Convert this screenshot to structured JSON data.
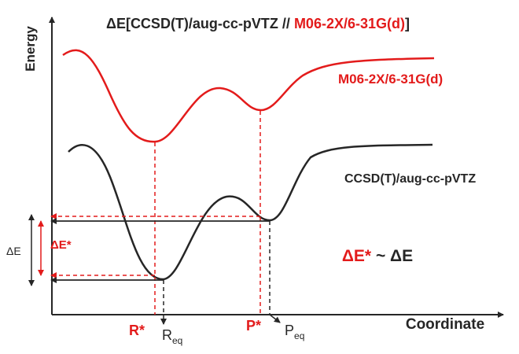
{
  "title": {
    "prefix": "ΔE[CCSD(T)/aug-cc-pVTZ // ",
    "highlight": "M06-2X/6-31G(d)",
    "suffix": "]"
  },
  "axes": {
    "y_label": "Energy",
    "x_label": "Coordinate"
  },
  "curves": {
    "red_label": "M06-2X/6-31G(d)",
    "black_label": "CCSD(T)/aug-cc-pVTZ"
  },
  "points": {
    "r_star": "R*",
    "r_eq_main": "R",
    "r_eq_sub": "eq",
    "p_star": "P*",
    "p_eq_main": "P",
    "p_eq_sub": "eq"
  },
  "deltas": {
    "delta_e": "ΔE",
    "delta_e_star": "ΔE*",
    "relation_left": "ΔE*",
    "relation_right": " ~ ΔE"
  },
  "colors": {
    "red": "#e31b1b",
    "dark": "#262626"
  }
}
